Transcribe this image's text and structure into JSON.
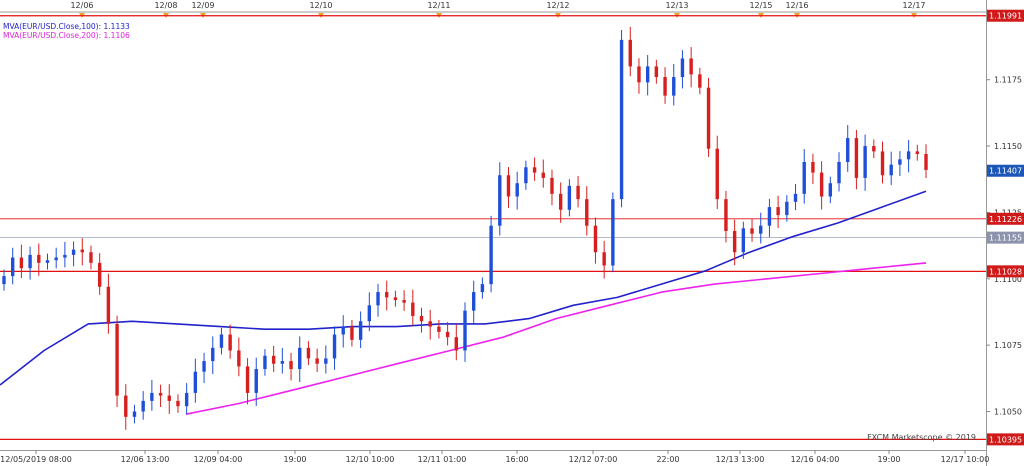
{
  "legend": {
    "ma100": "MVA(EUR/USD.Close,100): 1.1133",
    "ma200": "MVA(EUR/USD.Close,200): 1.1106"
  },
  "credit": "FXCM Marketscope © 2019",
  "colors": {
    "bull": "#1f4fd8",
    "bear": "#d81f1f",
    "ma100": "#2222cc",
    "ma200": "#ee22ee",
    "hline": "#e31010",
    "gridline": "#dcdcdc",
    "event": "#f0a020"
  },
  "chart_data": {
    "type": "candlestick",
    "symbol": "EUR/USD",
    "y_ticks": [
      "1.1050",
      "1.1075",
      "1.1100",
      "1.1125",
      "1.1150",
      "1.1175"
    ],
    "ylim": [
      1.10355,
      1.12005
    ],
    "x_labels": [
      "12/05/2019 08:00",
      "12/06 13:00",
      "12/09 04:00",
      "19:00",
      "12/10 10:00",
      "12/11 01:00",
      "16:00",
      "12/12 07:00",
      "22:00",
      "12/13 13:00",
      "12/16 04:00",
      "19:00",
      "12/17 10:00"
    ],
    "date_markers": [
      "12/06",
      "12/08",
      "12/09",
      "12/10",
      "12/11",
      "12/12",
      "12/13",
      "12/15",
      "12/16",
      "12/17"
    ],
    "horizontal_levels": [
      {
        "value": 1.11991,
        "label": "1.11991",
        "style": "solid"
      },
      {
        "value": 1.11226,
        "label": "1.11226",
        "style": "thin"
      },
      {
        "value": 1.11155,
        "label": "1.11155",
        "style": "thin-gray"
      },
      {
        "value": 1.11028,
        "label": "1.11028",
        "style": "solid"
      },
      {
        "value": 1.10395,
        "label": "1.10395",
        "style": "solid"
      }
    ],
    "current_price": {
      "value": 1.11407,
      "label": "1.11407"
    },
    "ohlc_close_path": [
      1.1101,
      1.1108,
      1.1104,
      1.1109,
      1.1106,
      1.1107,
      1.1108,
      1.1109,
      1.1111,
      1.111,
      1.1106,
      1.1097,
      1.1083,
      1.1056,
      1.1048,
      1.105,
      1.1054,
      1.1057,
      1.1056,
      1.1054,
      1.1052,
      1.1057,
      1.1065,
      1.1069,
      1.1074,
      1.1079,
      1.1073,
      1.1067,
      1.1057,
      1.1066,
      1.1071,
      1.1068,
      1.1069,
      1.1066,
      1.1074,
      1.107,
      1.1068,
      1.107,
      1.1079,
      1.1082,
      1.1077,
      1.1084,
      1.109,
      1.1095,
      1.1093,
      1.1092,
      1.1091,
      1.1086,
      1.1084,
      1.1082,
      1.108,
      1.1078,
      1.1073,
      1.1088,
      1.1095,
      1.1098,
      1.112,
      1.1139,
      1.1131,
      1.1136,
      1.1142,
      1.114,
      1.1138,
      1.1132,
      1.1126,
      1.1135,
      1.113,
      1.112,
      1.111,
      1.1105,
      1.113,
      1.119,
      1.118,
      1.1174,
      1.118,
      1.1176,
      1.1169,
      1.1176,
      1.1183,
      1.1177,
      1.1172,
      1.1149,
      1.113,
      1.1118,
      1.111,
      1.1119,
      1.1117,
      1.112,
      1.1127,
      1.1124,
      1.1129,
      1.1132,
      1.1144,
      1.114,
      1.1131,
      1.1136,
      1.1144,
      1.1153,
      1.1138,
      1.115,
      1.1148,
      1.1139,
      1.1143,
      1.1145,
      1.1148,
      1.1147,
      1.1141
    ],
    "ma100_path": [
      1.106,
      1.1073,
      1.1083,
      1.1084,
      1.1083,
      1.1082,
      1.1081,
      1.1081,
      1.1082,
      1.1082,
      1.1083,
      1.1083,
      1.1085,
      1.109,
      1.1093,
      1.1098,
      1.1103,
      1.111,
      1.1116,
      1.1121,
      1.1127,
      1.1133
    ],
    "ma200_path": [
      1.1049,
      1.1053,
      1.1058,
      1.1063,
      1.1068,
      1.1073,
      1.1078,
      1.1085,
      1.109,
      1.1095,
      1.1098,
      1.11,
      1.1102,
      1.1104,
      1.1106
    ]
  }
}
